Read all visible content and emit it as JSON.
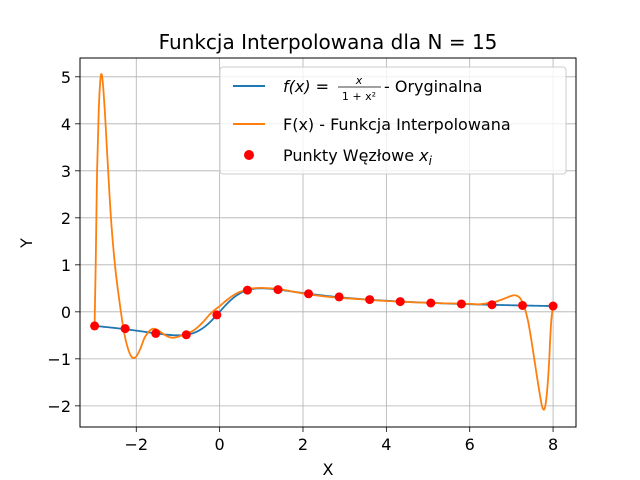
{
  "chart_data": {
    "type": "line",
    "title": "Funkcja Interpolowana dla N = 15",
    "xlabel": "X",
    "ylabel": "Y",
    "xlim": [
      -3.35,
      8.55
    ],
    "ylim": [
      -2.45,
      5.4
    ],
    "xticks": [
      -2,
      0,
      2,
      4,
      6,
      8
    ],
    "yticks": [
      -2,
      -1,
      0,
      1,
      2,
      3,
      4,
      5
    ],
    "grid": true,
    "legend_position": "top-right",
    "legend": {
      "original_prefix": "f(x) = ",
      "original_num": "x",
      "original_den": "1 + x²",
      "original_suffix": " - Oryginalna",
      "interp": "F(x) - Funkcja Interpolowana",
      "nodes_prefix": "Punkty Węzłowe ",
      "nodes_var": "x",
      "nodes_sub": "i"
    },
    "series": [
      {
        "key": "original",
        "color": "#1f77b4",
        "function": "x / (1 + x^2)",
        "x_range": [
          -3,
          8
        ]
      },
      {
        "key": "interp",
        "color": "#ff7f0e",
        "x": [
          -3.0,
          -2.97,
          -2.94,
          -2.9,
          -2.86,
          -2.83,
          -2.8,
          -2.75,
          -2.7,
          -2.6,
          -2.5,
          -2.4,
          -2.3,
          -2.2,
          -2.1,
          -2.0,
          -1.9,
          -1.8,
          -1.7,
          -1.6,
          -1.5,
          -1.4,
          -1.3,
          -1.2,
          -1.1,
          -1.0,
          -0.9,
          -0.8,
          -0.6,
          -0.4,
          -0.2,
          0.0,
          0.2,
          0.4,
          0.6,
          0.8,
          1.0,
          1.2,
          1.4,
          1.7,
          2.0,
          2.5,
          3.0,
          3.5,
          4.0,
          4.5,
          5.0,
          5.5,
          6.0,
          6.2,
          6.4,
          6.6,
          6.8,
          7.0,
          7.1,
          7.2,
          7.3,
          7.4,
          7.5,
          7.6,
          7.7,
          7.75,
          7.8,
          7.85,
          7.9,
          7.93,
          7.96,
          8.0
        ],
        "y": [
          -0.3,
          1.2,
          3.0,
          4.3,
          4.95,
          5.05,
          4.85,
          4.2,
          3.4,
          1.9,
          0.9,
          0.2,
          -0.4,
          -0.78,
          -0.97,
          -0.95,
          -0.78,
          -0.55,
          -0.42,
          -0.36,
          -0.38,
          -0.44,
          -0.5,
          -0.54,
          -0.55,
          -0.53,
          -0.5,
          -0.47,
          -0.38,
          -0.22,
          -0.02,
          0.12,
          0.27,
          0.39,
          0.46,
          0.5,
          0.51,
          0.5,
          0.49,
          0.44,
          0.39,
          0.33,
          0.29,
          0.26,
          0.23,
          0.21,
          0.19,
          0.18,
          0.17,
          0.16,
          0.18,
          0.21,
          0.27,
          0.34,
          0.35,
          0.3,
          0.13,
          -0.2,
          -0.72,
          -1.3,
          -1.85,
          -2.05,
          -2.05,
          -1.75,
          -1.15,
          -0.6,
          -0.15,
          0.12
        ]
      },
      {
        "key": "nodes",
        "color": "#ff0000",
        "type": "scatter",
        "x": [
          -3.0,
          -2.267,
          -1.533,
          -0.8,
          -0.067,
          0.667,
          1.4,
          2.133,
          2.867,
          3.6,
          4.333,
          5.067,
          5.8,
          6.533,
          7.267,
          8.0
        ],
        "y": [
          -0.3,
          -0.357,
          -0.459,
          -0.488,
          -0.066,
          0.461,
          0.473,
          0.384,
          0.317,
          0.261,
          0.218,
          0.188,
          0.167,
          0.151,
          0.136,
          0.123
        ]
      }
    ]
  }
}
